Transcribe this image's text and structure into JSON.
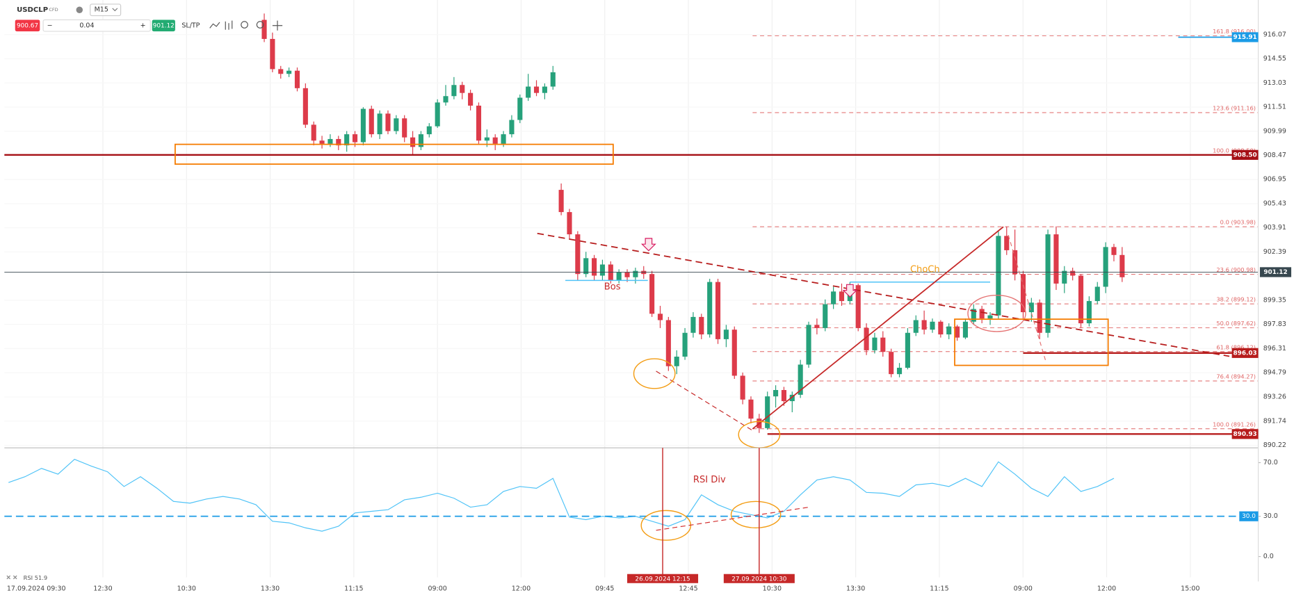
{
  "header": {
    "symbol": "USDCLP",
    "instrument_type": "CFD",
    "timeframe": "M15",
    "sell_price": "900.67",
    "quantity": "0.04",
    "buy_price": "901.12",
    "sltp": "SL/TP"
  },
  "chart_data": {
    "type": "candlestick",
    "ylim": [
      890.06,
      918.25
    ],
    "yticks": [
      916.07,
      914.55,
      913.03,
      911.51,
      909.99,
      908.47,
      906.95,
      905.43,
      903.91,
      902.39,
      899.35,
      897.83,
      896.31,
      894.79,
      893.26,
      891.74,
      890.22
    ],
    "bull_color": "#26a17b",
    "bear_color": "#dd3b4a",
    "candles": [
      [
        917.0,
        917.4,
        915.6,
        915.8
      ],
      [
        915.8,
        916.2,
        913.7,
        913.9
      ],
      [
        913.9,
        914.1,
        913.3,
        913.6
      ],
      [
        913.6,
        914.0,
        913.4,
        913.8
      ],
      [
        913.8,
        914.0,
        912.5,
        912.7
      ],
      [
        912.7,
        913.0,
        910.2,
        910.4
      ],
      [
        910.4,
        910.6,
        909.1,
        909.4
      ],
      [
        909.4,
        909.7,
        908.9,
        909.2
      ],
      [
        909.2,
        909.8,
        909.0,
        909.5
      ],
      [
        909.5,
        909.7,
        908.8,
        909.1
      ],
      [
        909.1,
        910.0,
        908.7,
        909.8
      ],
      [
        909.8,
        910.0,
        909.0,
        909.3
      ],
      [
        909.3,
        911.5,
        909.1,
        911.4
      ],
      [
        911.4,
        911.6,
        909.6,
        909.8
      ],
      [
        909.8,
        911.3,
        909.5,
        911.1
      ],
      [
        911.1,
        911.3,
        909.8,
        910.0
      ],
      [
        910.0,
        911.0,
        909.8,
        910.8
      ],
      [
        910.8,
        911.0,
        909.3,
        909.6
      ],
      [
        909.6,
        910.0,
        908.5,
        909.0
      ],
      [
        909.0,
        910.0,
        908.8,
        909.8
      ],
      [
        909.8,
        910.5,
        909.6,
        910.3
      ],
      [
        910.3,
        912.0,
        910.2,
        911.8
      ],
      [
        911.8,
        912.9,
        911.6,
        912.2
      ],
      [
        912.2,
        913.4,
        912.0,
        912.9
      ],
      [
        912.9,
        913.1,
        912.0,
        912.4
      ],
      [
        912.4,
        912.6,
        911.3,
        911.6
      ],
      [
        911.6,
        911.8,
        909.2,
        909.4
      ],
      [
        909.4,
        910.1,
        909.0,
        909.6
      ],
      [
        909.6,
        909.8,
        908.8,
        909.2
      ],
      [
        909.2,
        910.0,
        909.0,
        909.8
      ],
      [
        909.8,
        911.0,
        909.6,
        910.7
      ],
      [
        910.7,
        912.3,
        910.5,
        912.1
      ],
      [
        912.1,
        913.6,
        911.9,
        912.8
      ],
      [
        912.8,
        913.2,
        912.2,
        912.4
      ],
      [
        912.4,
        913.0,
        912.0,
        912.8
      ],
      [
        912.8,
        914.1,
        912.6,
        913.7
      ],
      [
        906.3,
        906.7,
        904.7,
        904.9
      ],
      [
        904.9,
        905.1,
        903.2,
        903.5
      ],
      [
        903.5,
        903.7,
        900.6,
        901.0
      ],
      [
        901.0,
        902.4,
        900.8,
        902.0
      ],
      [
        902.0,
        902.2,
        900.6,
        900.9
      ],
      [
        900.9,
        901.9,
        900.6,
        901.6
      ],
      [
        901.6,
        901.8,
        900.4,
        900.6
      ],
      [
        900.6,
        901.3,
        900.4,
        901.1
      ],
      [
        901.1,
        901.3,
        900.5,
        900.8
      ],
      [
        900.8,
        901.4,
        900.4,
        901.2
      ],
      [
        901.2,
        901.5,
        900.7,
        901.0
      ],
      [
        901.0,
        901.2,
        898.3,
        898.5
      ],
      [
        898.5,
        899.0,
        897.6,
        898.1
      ],
      [
        898.1,
        898.3,
        894.9,
        895.2
      ],
      [
        895.2,
        896.2,
        894.7,
        895.8
      ],
      [
        895.8,
        897.6,
        895.6,
        897.3
      ],
      [
        897.3,
        898.6,
        897.0,
        898.3
      ],
      [
        898.3,
        898.5,
        896.9,
        897.2
      ],
      [
        897.2,
        900.7,
        897.0,
        900.5
      ],
      [
        900.5,
        900.7,
        896.6,
        896.9
      ],
      [
        896.9,
        897.8,
        896.4,
        897.5
      ],
      [
        897.5,
        897.7,
        894.4,
        894.6
      ],
      [
        894.6,
        894.8,
        892.8,
        893.1
      ],
      [
        893.1,
        893.3,
        891.6,
        891.9
      ],
      [
        891.9,
        892.2,
        891.0,
        891.3
      ],
      [
        891.3,
        893.6,
        891.2,
        893.3
      ],
      [
        893.3,
        894.0,
        892.6,
        893.7
      ],
      [
        893.7,
        893.9,
        892.7,
        893.0
      ],
      [
        893.0,
        893.6,
        892.3,
        893.4
      ],
      [
        893.4,
        895.6,
        893.2,
        895.3
      ],
      [
        895.3,
        898.0,
        895.1,
        897.8
      ],
      [
        897.8,
        898.2,
        897.2,
        897.6
      ],
      [
        897.6,
        899.4,
        897.4,
        899.1
      ],
      [
        899.1,
        900.2,
        898.8,
        899.9
      ],
      [
        899.9,
        900.4,
        899.0,
        899.3
      ],
      [
        899.3,
        900.5,
        899.1,
        900.3
      ],
      [
        900.3,
        900.4,
        897.4,
        897.6
      ],
      [
        897.6,
        897.9,
        895.9,
        896.2
      ],
      [
        896.2,
        897.3,
        896.0,
        897.0
      ],
      [
        897.0,
        897.4,
        895.8,
        896.1
      ],
      [
        896.1,
        896.3,
        894.5,
        894.7
      ],
      [
        894.7,
        895.4,
        894.5,
        895.1
      ],
      [
        895.1,
        897.6,
        895.0,
        897.3
      ],
      [
        897.3,
        898.4,
        897.1,
        898.1
      ],
      [
        898.1,
        898.7,
        897.2,
        897.5
      ],
      [
        897.5,
        898.2,
        897.3,
        898.0
      ],
      [
        898.0,
        898.1,
        897.0,
        897.2
      ],
      [
        897.2,
        897.9,
        896.9,
        897.7
      ],
      [
        897.7,
        897.8,
        896.8,
        897.0
      ],
      [
        897.0,
        898.2,
        896.9,
        898.0
      ],
      [
        898.0,
        899.1,
        897.8,
        898.8
      ],
      [
        898.8,
        899.0,
        897.9,
        898.2
      ],
      [
        898.2,
        898.6,
        897.8,
        898.4
      ],
      [
        898.4,
        903.7,
        898.2,
        903.4
      ],
      [
        903.4,
        903.98,
        902.2,
        902.5
      ],
      [
        902.5,
        903.8,
        900.6,
        901.0
      ],
      [
        901.0,
        901.2,
        898.2,
        898.6
      ],
      [
        898.6,
        899.5,
        898.0,
        899.2
      ],
      [
        899.2,
        899.4,
        896.9,
        897.3
      ],
      [
        897.3,
        903.8,
        897.0,
        903.5
      ],
      [
        903.5,
        904.0,
        900.0,
        900.4
      ],
      [
        900.4,
        901.5,
        899.8,
        901.2
      ],
      [
        901.2,
        901.4,
        900.6,
        900.9
      ],
      [
        900.9,
        901.0,
        897.6,
        897.9
      ],
      [
        897.9,
        899.6,
        897.7,
        899.3
      ],
      [
        899.3,
        900.5,
        899.1,
        900.2
      ],
      [
        900.2,
        903.0,
        899.8,
        902.7
      ],
      [
        902.7,
        902.9,
        901.8,
        902.2
      ],
      [
        902.2,
        902.7,
        900.5,
        900.8
      ]
    ],
    "time_labels": [
      "17.09.2024 09:30",
      "12:30",
      "10:30",
      "13:30",
      "11:15",
      "09:00",
      "12:00",
      "09:45",
      "12:45",
      "10:30",
      "13:30",
      "11:15",
      "09:00",
      "12:00",
      "15:00"
    ],
    "price_lines": [
      {
        "value": 915.91,
        "label": "915.91",
        "color": "#1a9be6"
      },
      {
        "value": 908.5,
        "label": "908.50",
        "color": "#a50f15"
      },
      {
        "value": 901.12,
        "label": "901.12",
        "color": "#37474f"
      },
      {
        "value": 896.03,
        "label": "896.03",
        "color": "#b71c1c"
      },
      {
        "value": 890.93,
        "label": "890.93",
        "color": "#b71c1c"
      }
    ],
    "fib_color": "#e06666",
    "fib_levels": [
      {
        "value": 916.0,
        "label": "161.8 (916.00)"
      },
      {
        "value": 911.16,
        "label": "123.6 (911.16)"
      },
      {
        "value": 908.5,
        "label": "100.0 (908.50)"
      },
      {
        "value": 903.98,
        "label": "0.0 (903.98)"
      },
      {
        "value": 900.98,
        "label": "23.6 (900.98)"
      },
      {
        "value": 899.12,
        "label": "38.2 (899.12)"
      },
      {
        "value": 897.62,
        "label": "50.0 (897.62)"
      },
      {
        "value": 896.12,
        "label": "61.8 (896.12)"
      },
      {
        "value": 894.27,
        "label": "76.4 (894.27)"
      },
      {
        "value": 891.26,
        "label": "100.0 (891.26)"
      }
    ],
    "annotations": {
      "bos": "Bos",
      "choch": "ChoCh",
      "rsi_div": "RSI Div"
    },
    "date_markers": [
      "26.09.2024 12:15",
      "27.09.2024 10:30"
    ],
    "rsi": {
      "type": "line",
      "label": "RSI 51.9",
      "color": "#4fc3f7",
      "ylim": [
        -15.5,
        79.8
      ],
      "yticks": [
        {
          "value": 70,
          "label": "70.0"
        },
        {
          "value": 30,
          "label": "30.0"
        },
        {
          "value": 0,
          "label": "0.0"
        }
      ],
      "level": {
        "value": 30,
        "label": "30.0",
        "color": "#1a9be6"
      },
      "values": [
        55.2,
        59.5,
        65.7,
        61.4,
        72.5,
        67.5,
        63.2,
        52.2,
        59.5,
        50.9,
        41.1,
        39.8,
        42.9,
        44.8,
        42.9,
        38.6,
        26.3,
        25.1,
        21.4,
        18.9,
        22.6,
        32.5,
        33.7,
        34.9,
        42.3,
        44.2,
        47.2,
        43.5,
        36.8,
        38.6,
        48.5,
        52.2,
        50.9,
        58.3,
        29.4,
        27.5,
        30.0,
        28.8,
        30.0,
        26.3,
        22.6,
        27.5,
        46.0,
        38.6,
        33.7,
        31.2,
        28.8,
        33.7,
        46.0,
        57.1,
        59.5,
        57.1,
        47.8,
        47.2,
        44.8,
        53.4,
        54.6,
        52.2,
        58.3,
        52.2,
        70.6,
        61.4,
        50.9,
        44.8,
        59.5,
        48.5,
        52.2,
        58.3
      ]
    }
  }
}
